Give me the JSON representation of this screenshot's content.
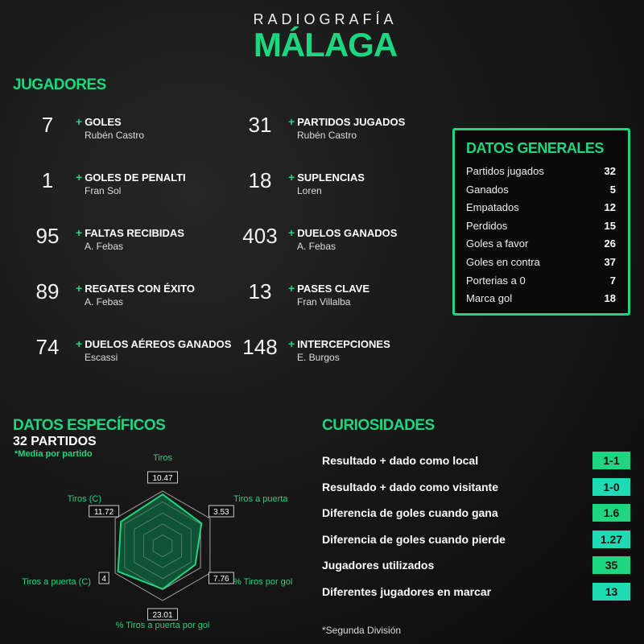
{
  "header": {
    "supertitle": "RADIOGRAFÍA",
    "title": "MÁLAGA"
  },
  "jugadores": {
    "title": "JUGADORES",
    "items": [
      {
        "value": "7",
        "label": "GOLES",
        "player": "Rubén Castro"
      },
      {
        "value": "1",
        "label": "GOLES DE PENALTI",
        "player": "Fran Sol"
      },
      {
        "value": "95",
        "label": "FALTAS RECIBIDAS",
        "player": "A. Febas"
      },
      {
        "value": "89",
        "label": "REGATES CON ÉXITO",
        "player": "A. Febas"
      },
      {
        "value": "74",
        "label": "DUELOS AÉREOS GANADOS",
        "player": "Escassi"
      },
      {
        "value": "31",
        "label": "PARTIDOS JUGADOS",
        "player": "Rubén Castro"
      },
      {
        "value": "18",
        "label": "SUPLENCIAS",
        "player": "Loren"
      },
      {
        "value": "403",
        "label": "DUELOS GANADOS",
        "player": "A. Febas"
      },
      {
        "value": "13",
        "label": "PASES CLAVE",
        "player": "Fran Villalba"
      },
      {
        "value": "148",
        "label": "INTERCEPCIONES",
        "player": "E. Burgos"
      }
    ],
    "plus": "+"
  },
  "datos_generales": {
    "title": "DATOS GENERALES",
    "rows": [
      {
        "label": "Partidos jugados",
        "value": "32"
      },
      {
        "label": "Ganados",
        "value": "5"
      },
      {
        "label": "Empatados",
        "value": "12"
      },
      {
        "label": "Perdidos",
        "value": "15"
      },
      {
        "label": "Goles a favor",
        "value": "26"
      },
      {
        "label": "Goles en contra",
        "value": "37"
      },
      {
        "label": "Porterias a 0",
        "value": "7"
      },
      {
        "label": "Marca gol",
        "value": "18"
      }
    ]
  },
  "datos_especificos": {
    "title": "DATOS ESPECÍFICOS",
    "subtitle": "32 PARTIDOS",
    "note": "*Media por partido"
  },
  "chart_data": {
    "type": "radar",
    "axes": [
      {
        "label": "Tiros",
        "value": "10.47",
        "level": 0.94
      },
      {
        "label": "Tiros a puerta",
        "value": "3.53",
        "level": 0.82
      },
      {
        "label": "% Tiros por gol",
        "value": "7.76",
        "level": 0.69
      },
      {
        "label": "% Tiros a puerta por gol",
        "value": "23.01",
        "level": 0.79
      },
      {
        "label": "Tiros a puerta (C)",
        "value": "4",
        "level": 0.94
      },
      {
        "label": "Tiros (C)",
        "value": "11.72",
        "level": 0.88
      }
    ],
    "rings": 5,
    "fill_color": "#0d5a36",
    "stroke_color": "#1ed67f"
  },
  "curiosidades": {
    "title": "CURIOSIDADES",
    "items": [
      {
        "label": "Resultado + dado como local",
        "value": "1-1",
        "color": "#1ed67f"
      },
      {
        "label": "Resultado + dado como visitante",
        "value": "1-0",
        "color": "#1edbb5"
      },
      {
        "label": "Diferencia de goles cuando gana",
        "value": "1.6",
        "color": "#1ed67f"
      },
      {
        "label": "Diferencia de goles cuando pierde",
        "value": "1.27",
        "color": "#1edbb5"
      },
      {
        "label": "Jugadores utilizados",
        "value": "35",
        "color": "#1ed67f"
      },
      {
        "label": "Diferentes jugadores en marcar",
        "value": "13",
        "color": "#1edbb5"
      }
    ]
  },
  "footnote": "*Segunda División",
  "colors": {
    "accent": "#1ed67f",
    "accent_alt": "#1edbb5",
    "background": "#141414"
  }
}
